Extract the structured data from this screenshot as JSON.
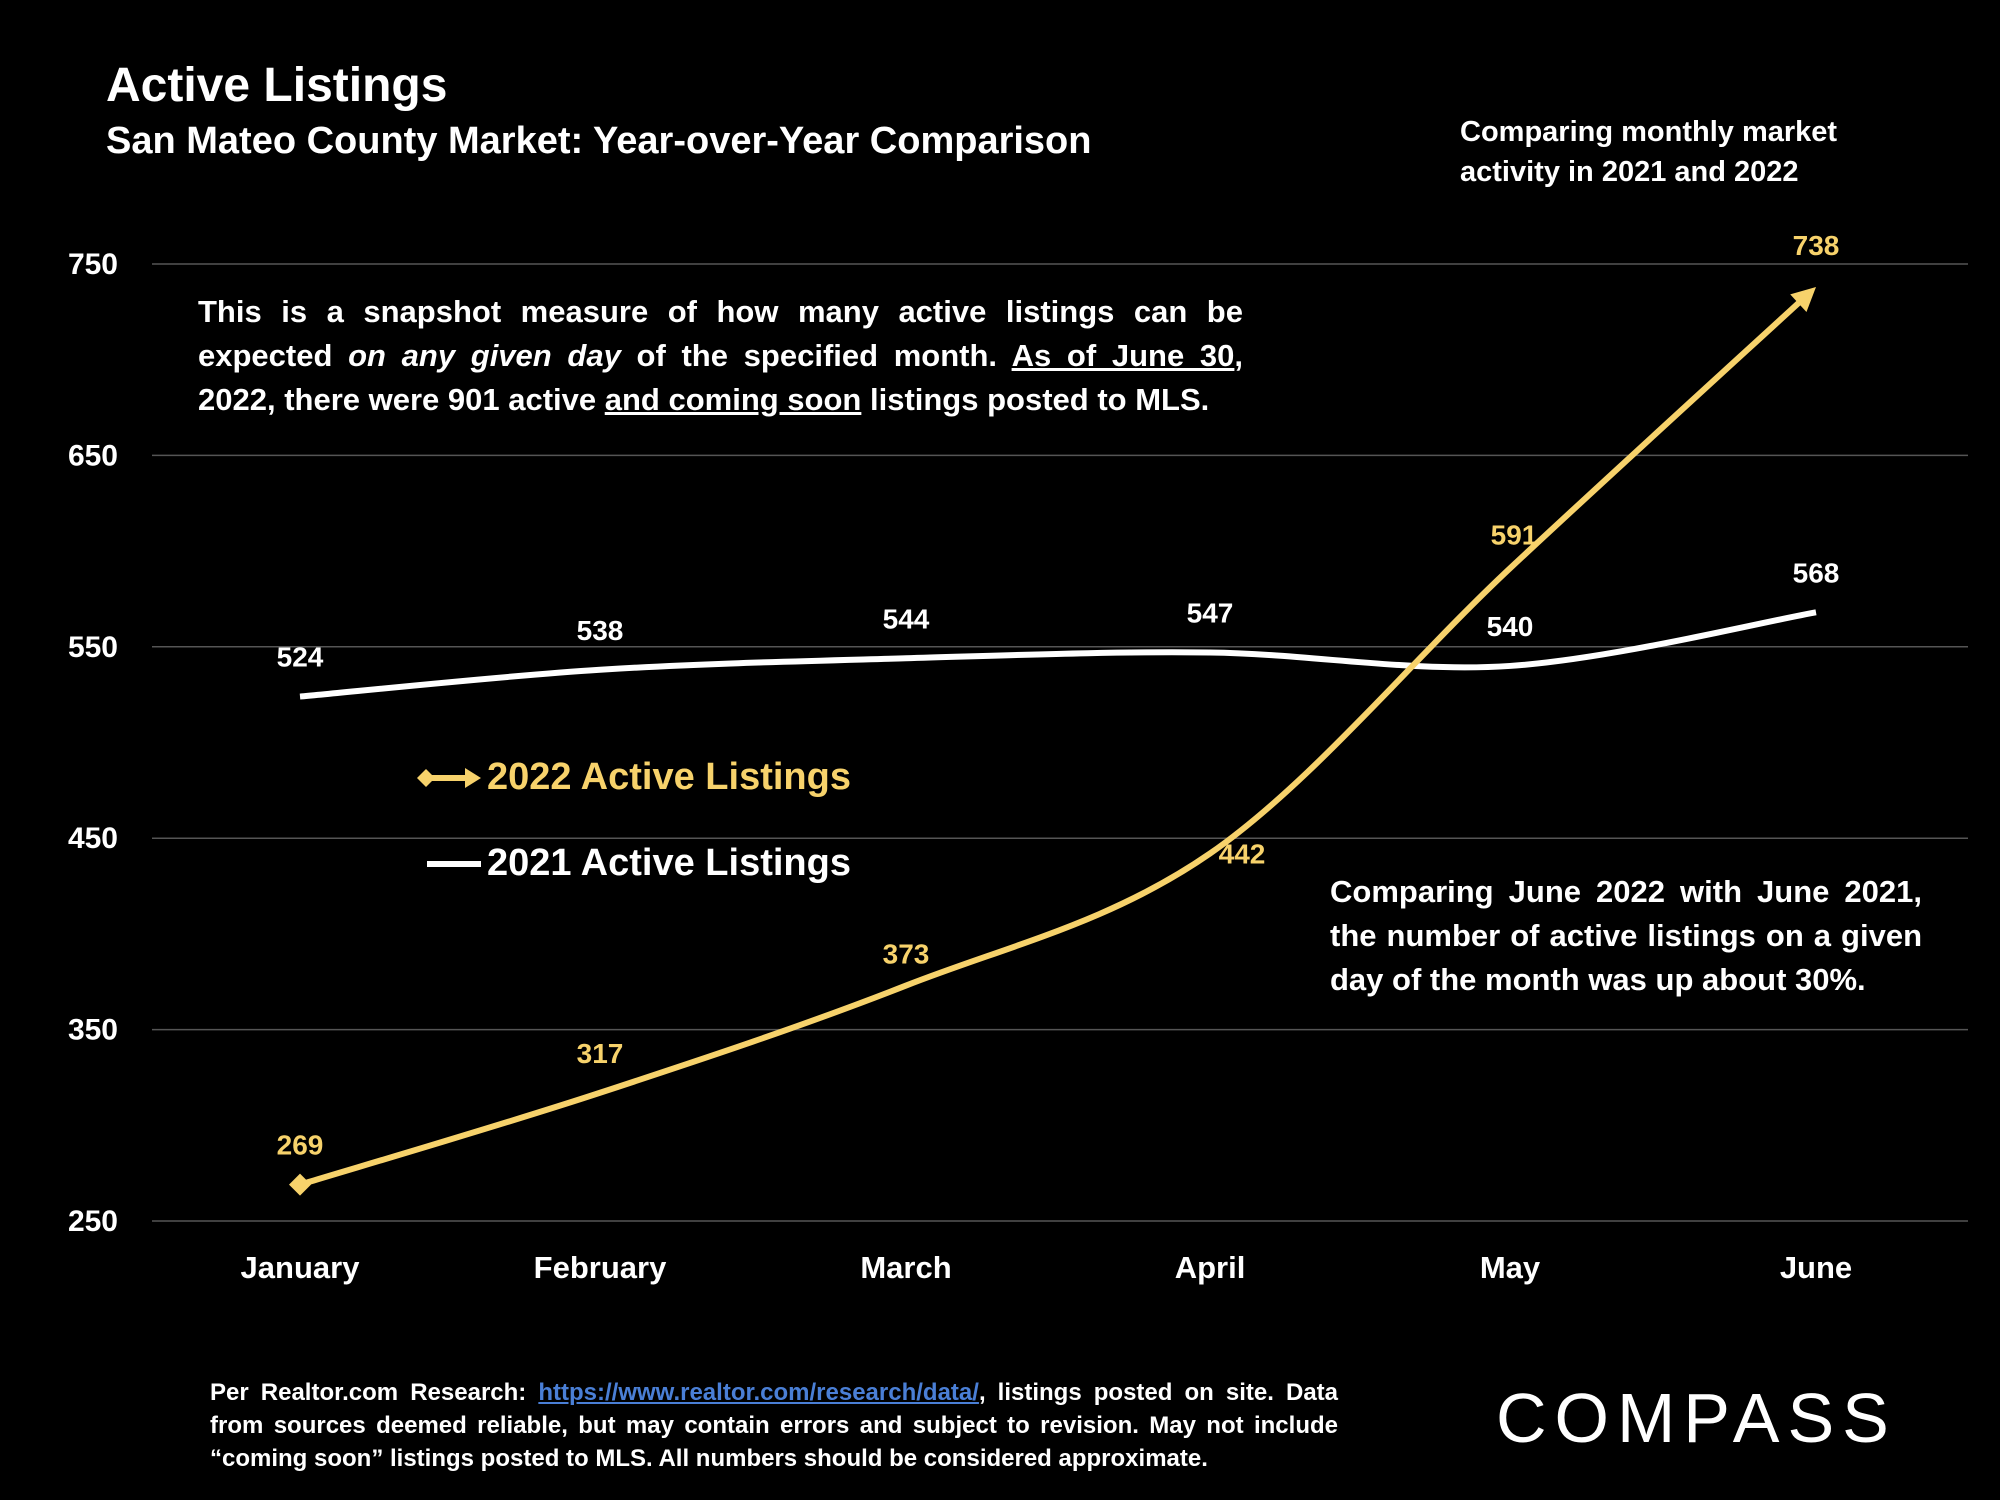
{
  "header": {
    "title": "Active Listings",
    "subtitle": "San Mateo County Market: Year-over-Year Comparison"
  },
  "notes": {
    "top_right": "Comparing monthly market activity in 2021 and 2022",
    "desc_p1": "This is a snapshot measure of how many active listings can be expected ",
    "desc_italic": "on any given day",
    "desc_p2": " of the specified month. ",
    "desc_u1": "As of June 30",
    "desc_p3": ", 2022, there were 901 active ",
    "desc_u2": "and coming soon",
    "desc_p4": " listings posted to MLS.",
    "compare": "Comparing June 2022 with June 2021, the number of active listings on a given day of the month was up about 30%."
  },
  "footer": {
    "prefix": "Per Realtor.com Research: ",
    "link": "https://www.realtor.com/research/data/",
    "rest": ", listings posted on site. Data from sources deemed reliable, but may contain errors and subject to revision. May not include “coming soon” listings posted to MLS. All numbers should be considered approximate."
  },
  "brand": {
    "logo": "COMPASS"
  },
  "colors": {
    "series_2022": "#f7d26b",
    "series_2021": "#ffffff",
    "grid": "#555555",
    "background": "#000000",
    "link": "#4a7fd6"
  },
  "chart_data": {
    "type": "line",
    "categories": [
      "January",
      "February",
      "March",
      "April",
      "May",
      "June"
    ],
    "series": [
      {
        "name": "2022 Active Listings",
        "values": [
          269,
          317,
          373,
          442,
          591,
          738
        ],
        "color": "#f7d26b"
      },
      {
        "name": "2021 Active Listings",
        "values": [
          524,
          538,
          544,
          547,
          540,
          568
        ],
        "color": "#ffffff"
      }
    ],
    "yticks": [
      250,
      350,
      450,
      550,
      650,
      750
    ],
    "ylim": [
      250,
      750
    ],
    "grid": true,
    "legend": "center-left"
  }
}
